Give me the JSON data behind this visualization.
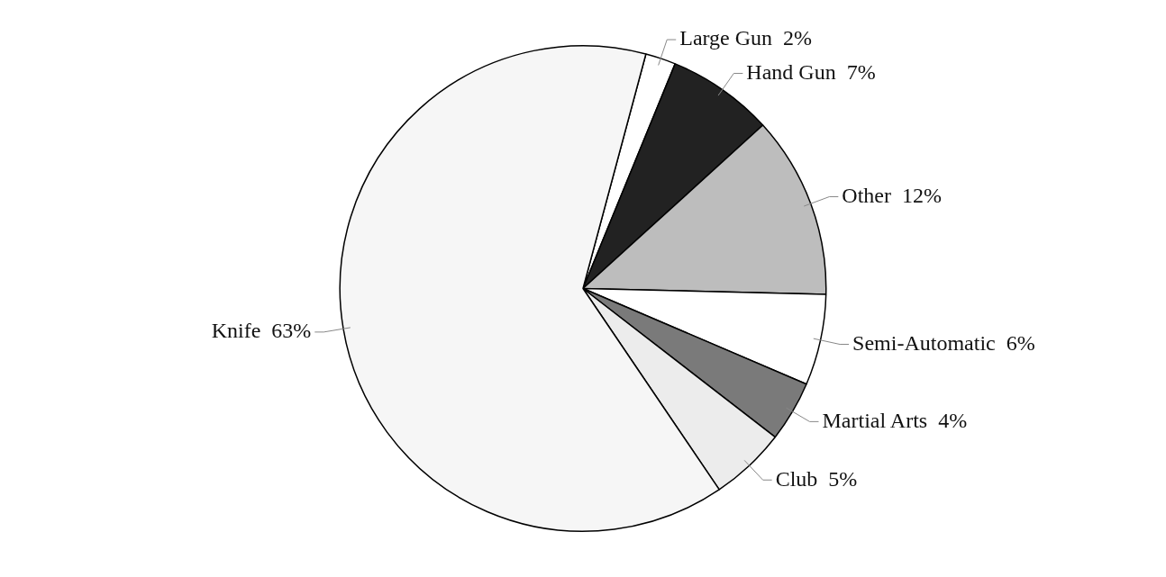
{
  "chart_data": {
    "type": "pie",
    "categories": [
      "Large Gun",
      "Hand Gun",
      "Other",
      "Semi-Automatic",
      "Martial Arts",
      "Club",
      "Knife"
    ],
    "values": [
      2,
      7,
      12,
      6,
      4,
      5,
      63
    ],
    "value_labels": [
      "2%",
      "7%",
      "12%",
      "6%",
      "4%",
      "5%",
      "63%"
    ],
    "colors": [
      "#ffffff",
      "#222222",
      "#bdbdbd",
      "#ffffff",
      "#7a7a7a",
      "#ececec",
      "#f6f6f6"
    ],
    "legend": false
  }
}
